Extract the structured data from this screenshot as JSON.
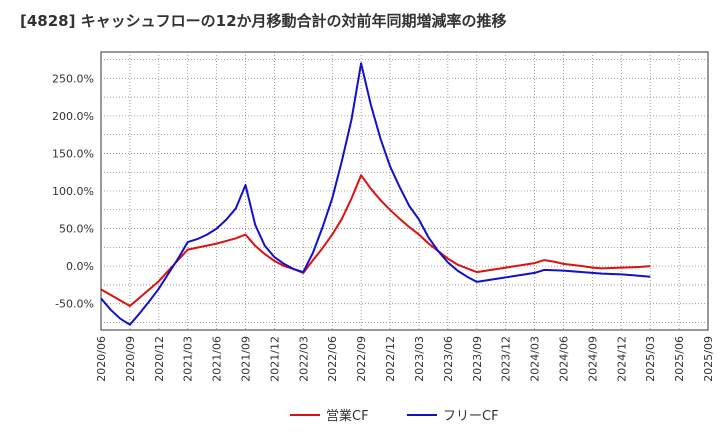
{
  "chart_data": {
    "type": "line",
    "title": "[4828]  キャッシュフローの12か月移動合計の対前年同期増減率の推移",
    "xlabel": "",
    "ylabel": "",
    "ylim": [
      -85,
      285
    ],
    "yticks": [
      -50,
      0,
      50,
      100,
      150,
      200,
      250
    ],
    "ytick_labels": [
      "-50.0%",
      "0.0%",
      "50.0%",
      "100.0%",
      "150.0%",
      "200.0%",
      "250.0%"
    ],
    "x_start": "2020/06",
    "x_labels": [
      "2020/06",
      "2020/09",
      "2020/12",
      "2021/03",
      "2021/06",
      "2021/09",
      "2021/12",
      "2022/03",
      "2022/06",
      "2022/09",
      "2022/12",
      "2023/03",
      "2023/06",
      "2023/09",
      "2023/12",
      "2024/03",
      "2024/06",
      "2024/09",
      "2024/12",
      "2025/03",
      "2025/06",
      "2025/09"
    ],
    "grid": true,
    "legend_position": "bottom-center",
    "series": [
      {
        "name": "営業CF",
        "color": "#dd1111",
        "values": [
          [
            0,
            -31
          ],
          [
            3,
            -53
          ],
          [
            6,
            -20
          ],
          [
            9,
            22
          ],
          [
            12,
            30
          ],
          [
            14,
            37
          ],
          [
            15,
            42
          ],
          [
            16,
            27
          ],
          [
            17,
            16
          ],
          [
            18,
            7
          ],
          [
            19,
            0
          ],
          [
            20,
            -4
          ],
          [
            21,
            -9
          ],
          [
            22,
            8
          ],
          [
            23,
            24
          ],
          [
            24,
            42
          ],
          [
            25,
            63
          ],
          [
            26,
            90
          ],
          [
            27,
            121
          ],
          [
            28,
            103
          ],
          [
            29,
            88
          ],
          [
            30,
            75
          ],
          [
            31,
            63
          ],
          [
            32,
            52
          ],
          [
            33,
            42
          ],
          [
            34,
            30
          ],
          [
            35,
            20
          ],
          [
            36,
            10
          ],
          [
            37,
            2
          ],
          [
            38,
            -3
          ],
          [
            39,
            -8
          ],
          [
            41,
            -4
          ],
          [
            43,
            0
          ],
          [
            45,
            4
          ],
          [
            46,
            8
          ],
          [
            47,
            6
          ],
          [
            48,
            3
          ],
          [
            50,
            0
          ],
          [
            51,
            -2
          ],
          [
            52,
            -3
          ],
          [
            54,
            -2
          ],
          [
            56,
            -1
          ],
          [
            57,
            0
          ]
        ]
      },
      {
        "name": "フリーCF",
        "color": "#1111cc",
        "values": [
          [
            0,
            -43
          ],
          [
            1,
            -58
          ],
          [
            2,
            -70
          ],
          [
            3,
            -78
          ],
          [
            4,
            -63
          ],
          [
            5,
            -47
          ],
          [
            6,
            -30
          ],
          [
            7,
            -10
          ],
          [
            8,
            10
          ],
          [
            9,
            32
          ],
          [
            10,
            36
          ],
          [
            11,
            42
          ],
          [
            12,
            50
          ],
          [
            13,
            62
          ],
          [
            14,
            77
          ],
          [
            15,
            108
          ],
          [
            16,
            55
          ],
          [
            17,
            27
          ],
          [
            18,
            12
          ],
          [
            19,
            3
          ],
          [
            20,
            -4
          ],
          [
            21,
            -8
          ],
          [
            22,
            18
          ],
          [
            23,
            52
          ],
          [
            24,
            90
          ],
          [
            25,
            140
          ],
          [
            26,
            195
          ],
          [
            27,
            270
          ],
          [
            28,
            215
          ],
          [
            29,
            170
          ],
          [
            30,
            133
          ],
          [
            31,
            105
          ],
          [
            32,
            80
          ],
          [
            33,
            62
          ],
          [
            34,
            38
          ],
          [
            35,
            20
          ],
          [
            36,
            5
          ],
          [
            37,
            -6
          ],
          [
            38,
            -14
          ],
          [
            39,
            -21
          ],
          [
            41,
            -17
          ],
          [
            43,
            -13
          ],
          [
            45,
            -9
          ],
          [
            46,
            -5
          ],
          [
            48,
            -6
          ],
          [
            50,
            -8
          ],
          [
            52,
            -10
          ],
          [
            54,
            -11
          ],
          [
            56,
            -13
          ],
          [
            57,
            -14
          ]
        ]
      }
    ]
  }
}
